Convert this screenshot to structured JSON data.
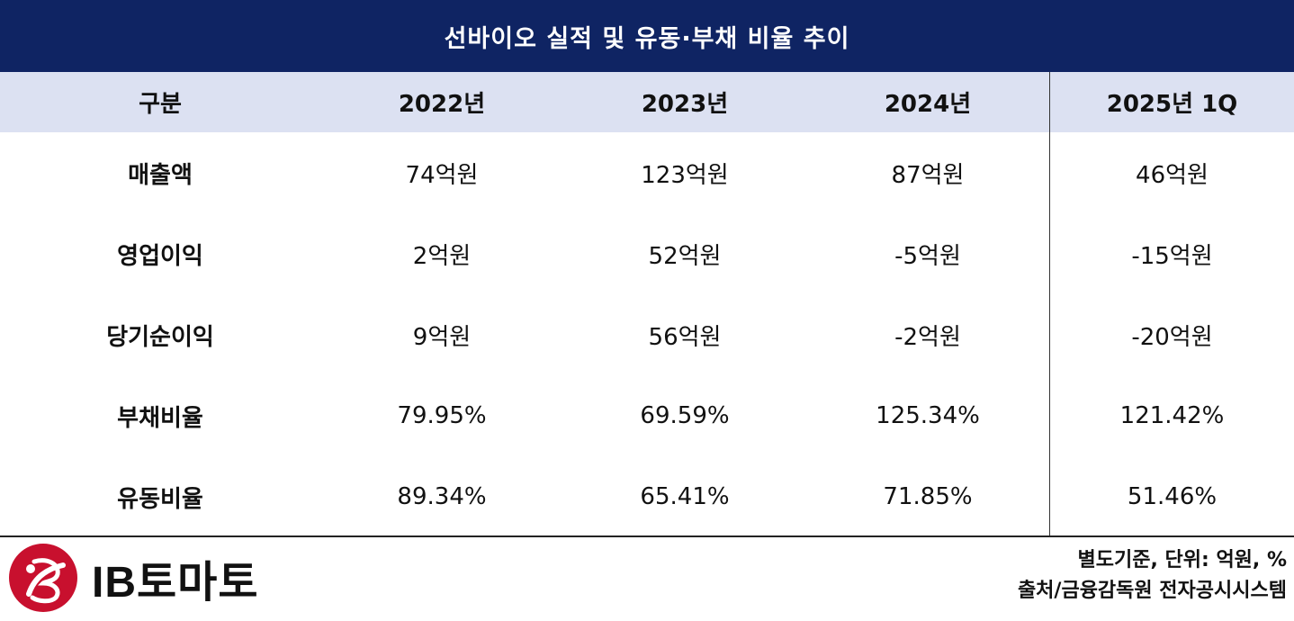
{
  "title": "선바이오 실적 및 유동·부채 비율 추이",
  "header": [
    "구분",
    "2022년",
    "2023년",
    "2024년",
    "2025년 1Q"
  ],
  "rows": [
    {
      "label": "매출액",
      "values": [
        "74억원",
        "123억원",
        "87억원",
        "46억원"
      ]
    },
    {
      "label": "영업이익",
      "values": [
        "2억원",
        "52억원",
        "-5억원",
        "-15억원"
      ]
    },
    {
      "label": "당기순이익",
      "values": [
        "9억원",
        "56억원",
        "-2억원",
        "-20억원"
      ]
    },
    {
      "label": "부채비율",
      "values": [
        "79.95%",
        "69.59%",
        "125.34%",
        "121.42%"
      ]
    },
    {
      "label": "유동비율",
      "values": [
        "89.34%",
        "65.41%",
        "71.85%",
        "51.46%"
      ]
    }
  ],
  "logo": {
    "text": "IB토마토",
    "accent_color": "#c8102e"
  },
  "footer": {
    "note": "별도기준, 단위: 억원, %",
    "source": "출처/금융감독원 전자공시시스템"
  },
  "colors": {
    "title_bg": "#0f2463",
    "header_bg": "#dce1f2"
  }
}
